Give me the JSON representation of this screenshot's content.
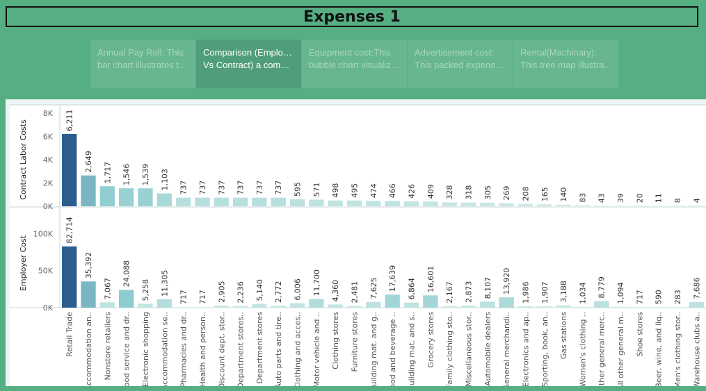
{
  "page": {
    "title": "Expenses 1"
  },
  "tabs": [
    {
      "line1": "Annual Pay Roll: This",
      "line2": "bar chart illustrates t..",
      "active": false
    },
    {
      "line1": "Comparison (Employee",
      "line2": "Vs Contract) a compa..",
      "active": true
    },
    {
      "line1": "Equipment cost:This",
      "line2": "bubble chart visualiza..",
      "active": false
    },
    {
      "line1": "Advertisement cost:",
      "line2": "This packed expenses..",
      "active": false
    },
    {
      "line1": "Rental(Machinary):",
      "line2": "This tree map illustra..",
      "active": false
    }
  ],
  "chart_data": {
    "type": "bar",
    "categories": [
      "Retail Trade",
      "Accommodation an..",
      "Nonstore retailers",
      "Food service and dr..",
      "Electronic shopping",
      "Accommodation se..",
      "Pharmacies and dr..",
      "Health and person..",
      "Discount dept. stor..",
      "Department stores..",
      "Department stores",
      "Auto parts and tire..",
      "Clothing and acces..",
      "Motor vehicle and ..",
      "Clothing stores",
      "Furniture stores",
      "Building mat. and g..",
      "Food and beverage ..",
      "Building mat. and s..",
      "Grocery stores",
      "Family clothing sto..",
      "Miscellaneous stor..",
      "Automobile dealers",
      "General merchandi..",
      "Electronics and ap..",
      "Sporting, book, an..",
      "Gas stations",
      "Women's clothing ..",
      "Other general merc..",
      "All other general m..",
      "Shoe stores",
      "Beer, wine, and liq..",
      "Men's clothing stor..",
      "Warehouse clubs a.."
    ],
    "series": [
      {
        "name": "Contract Labor Costs",
        "values": [
          6211,
          2649,
          1717,
          1546,
          1539,
          1103,
          737,
          737,
          737,
          737,
          737,
          737,
          595,
          571,
          498,
          495,
          474,
          466,
          426,
          409,
          328,
          318,
          305,
          269,
          208,
          165,
          140,
          83,
          43,
          39,
          20,
          11,
          8,
          4
        ],
        "labels": [
          "6,211",
          "2,649",
          "1,717",
          "1,546",
          "1,539",
          "1,103",
          "737",
          "737",
          "737",
          "737",
          "737",
          "737",
          "595",
          "571",
          "498",
          "495",
          "474",
          "466",
          "426",
          "409",
          "328",
          "318",
          "305",
          "269",
          "208",
          "165",
          "140",
          "83",
          "43",
          "39",
          "20",
          "11",
          "8",
          "4"
        ],
        "ylabel": "Contract Labor Costs",
        "ylim": [
          0,
          8000
        ],
        "yticks": [
          "0K",
          "2K",
          "4K",
          "6K",
          "8K"
        ],
        "ytick_values": [
          0,
          2000,
          4000,
          6000,
          8000
        ]
      },
      {
        "name": "Employer Cost",
        "values": [
          82714,
          35392,
          7067,
          24088,
          5258,
          11305,
          717,
          717,
          2905,
          2236,
          5140,
          2772,
          6006,
          11700,
          4360,
          2481,
          7625,
          17639,
          6864,
          16601,
          2167,
          2873,
          8107,
          13920,
          1986,
          1907,
          3188,
          1034,
          8779,
          1094,
          717,
          590,
          283,
          7686
        ],
        "labels": [
          "82,714",
          "35,392",
          "7,067",
          "24,088",
          "5,258",
          "11,305",
          "717",
          "717",
          "2,905",
          "2,236",
          "5,140",
          "2,772",
          "6,006",
          "11,700",
          "4,360",
          "2,481",
          "7,625",
          "17,639",
          "6,864",
          "16,601",
          "2,167",
          "2,873",
          "8,107",
          "13,920",
          "1,986",
          "1,907",
          "3,188",
          "1,034",
          "8,779",
          "1,094",
          "717",
          "590",
          "283",
          "7,686"
        ],
        "ylabel": "Employer Cost",
        "ylim": [
          0,
          120000
        ],
        "yticks": [
          "0K",
          "50K",
          "100K"
        ],
        "ytick_values": [
          0,
          50000,
          100000
        ]
      }
    ],
    "color_scale": {
      "low": "#d2ece8",
      "mid": "#8dcbcf",
      "high": "#2c5d8f"
    }
  }
}
